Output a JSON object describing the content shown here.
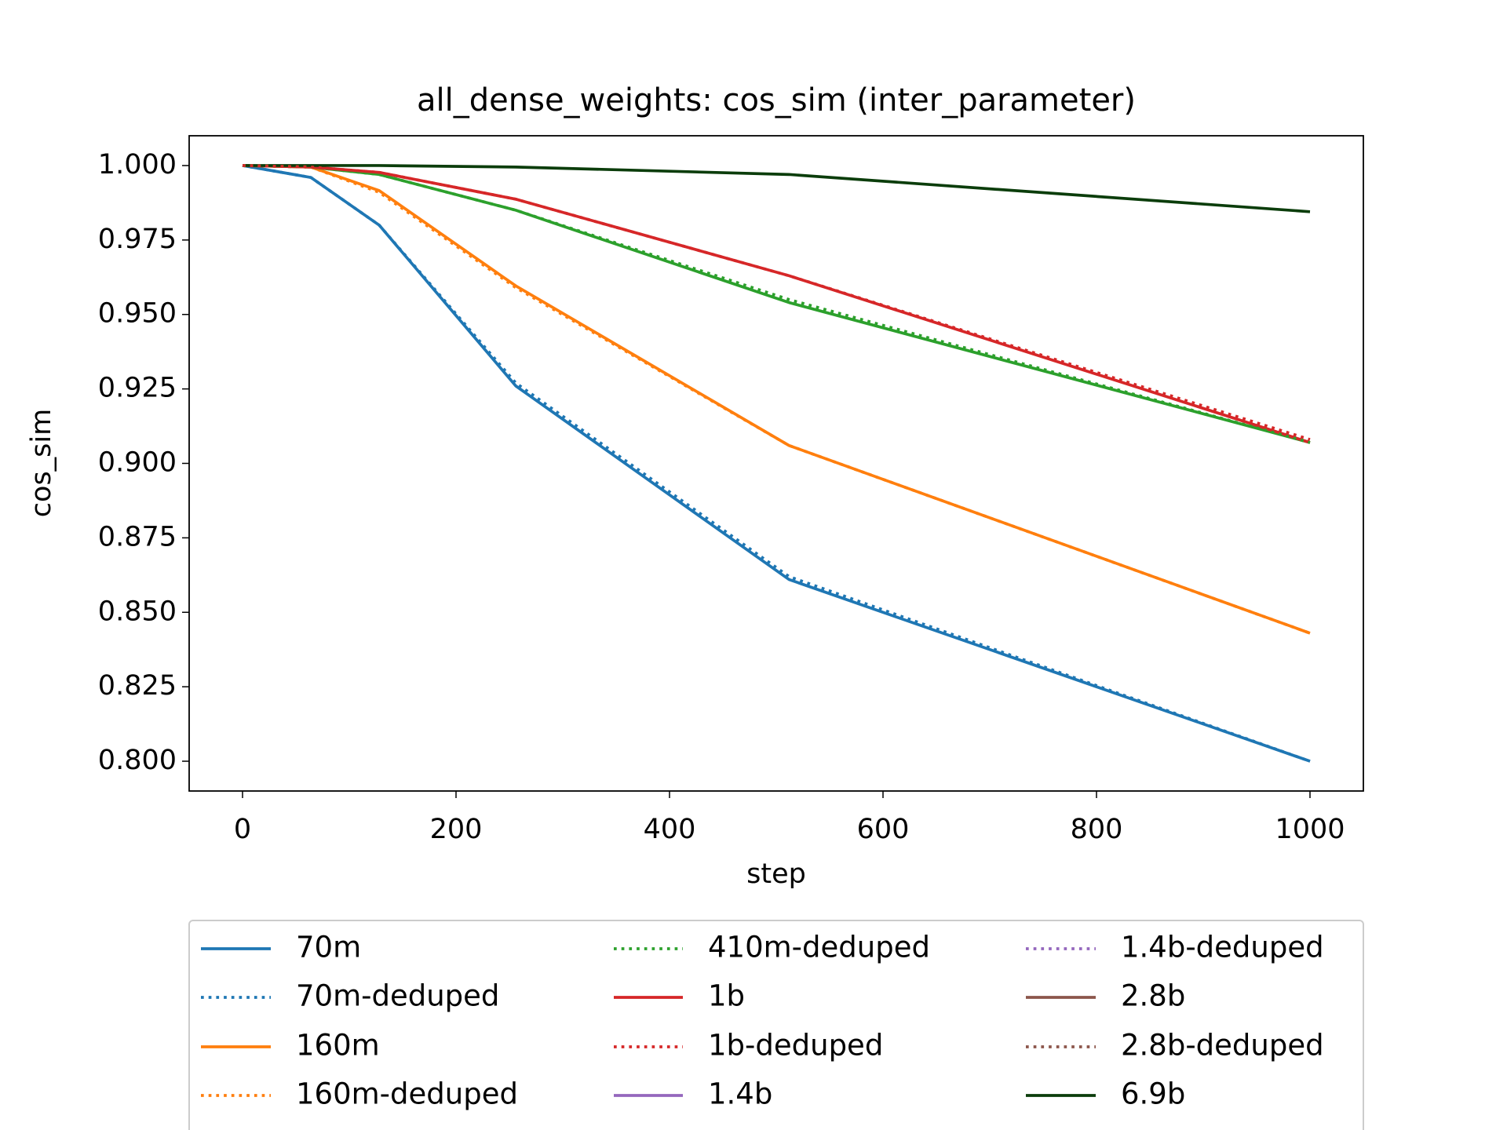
{
  "chart_data": {
    "type": "line",
    "title": "all_dense_weights: cos_sim (inter_parameter)",
    "xlabel": "step",
    "ylabel": "cos_sim",
    "x": [
      0,
      64,
      128,
      256,
      512,
      1000
    ],
    "xlim": [
      -50,
      1050
    ],
    "xticks": [
      0,
      200,
      400,
      600,
      800,
      1000
    ],
    "ylim": [
      0.79,
      1.01
    ],
    "yticks": [
      {
        "value": 0.8,
        "label": "0.800"
      },
      {
        "value": 0.825,
        "label": "0.825"
      },
      {
        "value": 0.85,
        "label": "0.850"
      },
      {
        "value": 0.875,
        "label": "0.875"
      },
      {
        "value": 0.9,
        "label": "0.900"
      },
      {
        "value": 0.925,
        "label": "0.925"
      },
      {
        "value": 0.95,
        "label": "0.950"
      },
      {
        "value": 0.975,
        "label": "0.975"
      },
      {
        "value": 1.0,
        "label": "1.000"
      }
    ],
    "grid": false,
    "legend": "below",
    "series": [
      {
        "name": "70m",
        "color": "#1f77b4",
        "linestyle": "solid",
        "values": [
          1.0,
          0.996,
          0.98,
          0.926,
          0.861,
          0.8
        ]
      },
      {
        "name": "70m-deduped",
        "color": "#1f77b4",
        "linestyle": "dotted",
        "values": [
          1.0,
          0.996,
          0.98,
          0.927,
          0.862,
          0.8
        ]
      },
      {
        "name": "160m",
        "color": "#ff7f0e",
        "linestyle": "solid",
        "values": [
          1.0,
          0.9995,
          0.9916,
          0.9596,
          0.906,
          0.843
        ]
      },
      {
        "name": "160m-deduped",
        "color": "#ff7f0e",
        "linestyle": "dotted",
        "values": [
          1.0,
          0.9995,
          0.991,
          0.959,
          0.906,
          0.843
        ]
      },
      {
        "color": "#2ca02c",
        "linestyle": "solid",
        "values": [
          1.0,
          0.9995,
          0.997,
          0.985,
          0.954,
          0.907
        ]
      },
      {
        "name": "410m-deduped",
        "color": "#2ca02c",
        "linestyle": "dotted",
        "values": [
          1.0,
          0.9995,
          0.997,
          0.985,
          0.955,
          0.907
        ]
      },
      {
        "name": "1b",
        "color": "#d62728",
        "linestyle": "solid",
        "values": [
          1.0,
          0.9995,
          0.9977,
          0.9887,
          0.963,
          0.907
        ]
      },
      {
        "name": "1b-deduped",
        "color": "#d62728",
        "linestyle": "dotted",
        "values": [
          1.0,
          0.9995,
          0.9977,
          0.9887,
          0.963,
          0.908
        ]
      },
      {
        "name": "1.4b",
        "color": "#9467bd",
        "linestyle": "solid",
        "values": [
          null,
          null,
          null,
          null,
          null,
          null
        ]
      },
      {
        "name": "1.4b-deduped",
        "color": "#9467bd",
        "linestyle": "dotted",
        "values": [
          null,
          null,
          null,
          null,
          null,
          null
        ]
      },
      {
        "name": "2.8b",
        "color": "#8c564b",
        "linestyle": "solid",
        "values": [
          null,
          null,
          null,
          null,
          null,
          null
        ]
      },
      {
        "name": "2.8b-deduped",
        "color": "#8c564b",
        "linestyle": "dotted",
        "values": [
          null,
          null,
          null,
          null,
          null,
          null
        ]
      },
      {
        "name": "6.9b",
        "color": "#0b3d0b",
        "linestyle": "solid",
        "values": [
          1.0,
          1.0,
          1.0,
          0.9995,
          0.997,
          0.9845
        ]
      }
    ]
  }
}
